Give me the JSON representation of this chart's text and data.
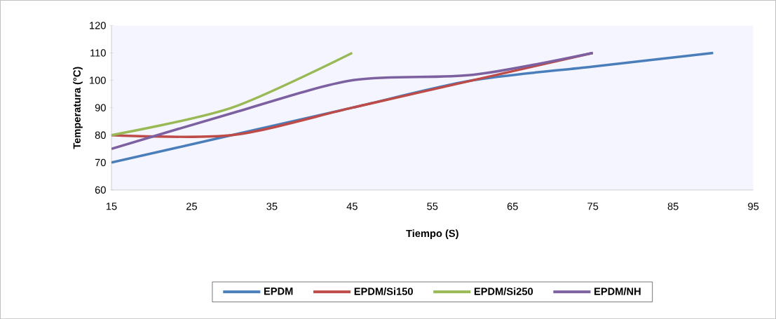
{
  "chart_data": {
    "type": "line",
    "xlabel": "Tiempo (S)",
    "ylabel": "Temperatura (°C)",
    "xlim": [
      15,
      95
    ],
    "xticks": [
      15,
      25,
      35,
      45,
      55,
      65,
      75,
      85,
      95
    ],
    "ylim": [
      60,
      120
    ],
    "yticks": [
      60,
      70,
      80,
      90,
      100,
      110,
      120
    ],
    "legend": "bottom",
    "grid": false,
    "marker": "none",
    "line_style": "solid",
    "series": [
      {
        "name": "EPDM",
        "color": "#4a7ebb",
        "x": [
          15,
          30,
          45,
          60,
          75,
          90
        ],
        "values": [
          70,
          80,
          90,
          100,
          105,
          110
        ]
      },
      {
        "name": "EPDM/Si150",
        "color": "#be4b48",
        "x": [
          15,
          30,
          45,
          60,
          75
        ],
        "values": [
          80,
          80,
          90,
          100,
          110
        ]
      },
      {
        "name": "EPDM/Si250",
        "color": "#98b954",
        "x": [
          15,
          30,
          45
        ],
        "values": [
          80,
          90,
          110
        ]
      },
      {
        "name": "EPDM/NH",
        "color": "#7d60a0",
        "x": [
          15,
          30,
          45,
          60,
          75
        ],
        "values": [
          75,
          88,
          100,
          102,
          110
        ]
      }
    ]
  }
}
